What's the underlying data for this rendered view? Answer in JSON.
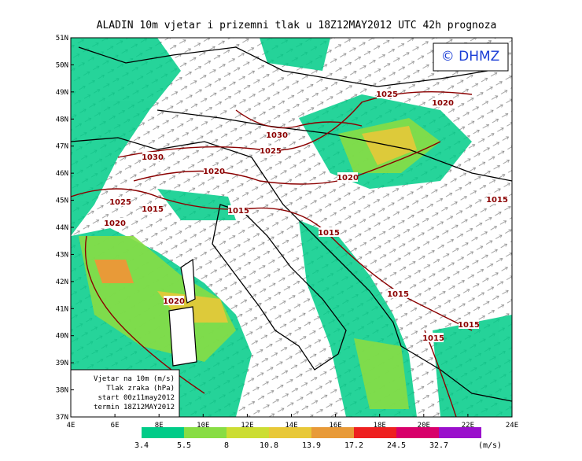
{
  "title": "ALADIN  10m  vjetar  i  prizemni  tlak  u  18Z12MAY2012  UTC  42h  prognoza",
  "copyright": "© DHMZ",
  "lat_labels": [
    "51N",
    "50N",
    "49N",
    "48N",
    "47N",
    "46N",
    "45N",
    "44N",
    "43N",
    "42N",
    "41N",
    "40N",
    "39N",
    "38N",
    "37N"
  ],
  "lon_labels": [
    "4E",
    "6E",
    "8E",
    "10E",
    "12E",
    "14E",
    "16E",
    "18E",
    "20E",
    "22E",
    "24E"
  ],
  "isobar_labels": [
    "1025",
    "1020",
    "1030",
    "1025",
    "1030",
    "1020",
    "1020",
    "1025",
    "1015",
    "1015",
    "1015",
    "1020",
    "1015",
    "1015",
    "1020",
    "1015",
    "1015"
  ],
  "info_box": [
    "Vjetar na 10m (m/s)",
    "Tlak zraka (hPa)",
    "start 00z11may2012",
    "termin 18Z12MAY2012"
  ],
  "colorbar": {
    "colors": [
      "#00cc88",
      "#88dd44",
      "#ccdd33",
      "#e8c838",
      "#e89a38",
      "#ee2020",
      "#d8006a",
      "#9a10cc"
    ],
    "labels": [
      "3.4",
      "5.5",
      "8",
      "10.8",
      "13.9",
      "17.2",
      "24.5",
      "32.7"
    ],
    "unit": "(m/s)"
  }
}
